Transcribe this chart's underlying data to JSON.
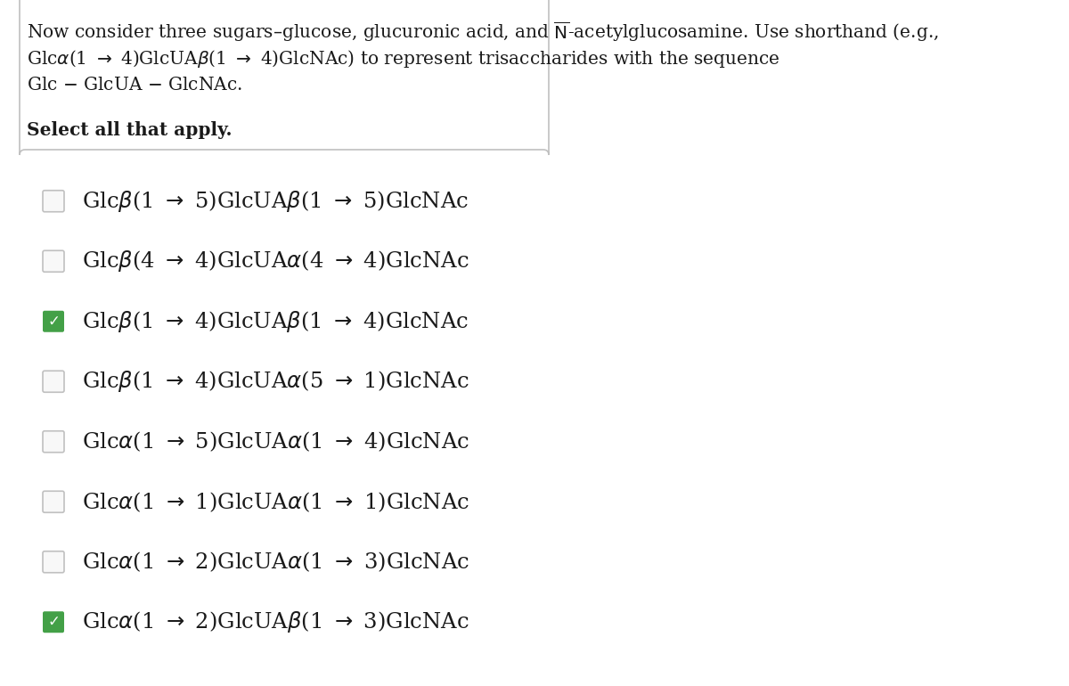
{
  "background_color": "#ffffff",
  "fig_width": 12.0,
  "fig_height": 7.7,
  "header_lines": [
    "Now consider three sugars–glucose, glucuronic acid, and $\\overline{\\mathrm{N}}$-acetylglucosamine. Use shorthand (e.g.,",
    "Glc$\\alpha$(1 $\\rightarrow$ 4)GlcUA$\\beta$(1 $\\rightarrow$ 4)GlcNAc) to represent trisaccharides with the sequence",
    "Glc $-$ GlcUA $-$ GlcNAc."
  ],
  "select_label": "Select all that apply.",
  "options": [
    {
      "text": "Glc$\\beta$(1 $\\rightarrow$ 5)GlcUA$\\beta$(1 $\\rightarrow$ 5)GlcNAc",
      "checked": false
    },
    {
      "text": "Glc$\\beta$(4 $\\rightarrow$ 4)GlcUA$\\alpha$(4 $\\rightarrow$ 4)GlcNAc",
      "checked": false
    },
    {
      "text": "Glc$\\beta$(1 $\\rightarrow$ 4)GlcUA$\\beta$(1 $\\rightarrow$ 4)GlcNAc",
      "checked": true
    },
    {
      "text": "Glc$\\beta$(1 $\\rightarrow$ 4)GlcUA$\\alpha$(5 $\\rightarrow$ 1)GlcNAc",
      "checked": false
    },
    {
      "text": "Glc$\\alpha$(1 $\\rightarrow$ 5)GlcUA$\\alpha$(1 $\\rightarrow$ 4)GlcNAc",
      "checked": false
    },
    {
      "text": "Glc$\\alpha$(1 $\\rightarrow$ 1)GlcUA$\\alpha$(1 $\\rightarrow$ 1)GlcNAc",
      "checked": false
    },
    {
      "text": "Glc$\\alpha$(1 $\\rightarrow$ 2)GlcUA$\\alpha$(1 $\\rightarrow$ 3)GlcNAc",
      "checked": false
    },
    {
      "text": "Glc$\\alpha$(1 $\\rightarrow$ 2)GlcUA$\\beta$(1 $\\rightarrow$ 3)GlcNAc",
      "checked": true
    }
  ],
  "header_fontsize": 14.5,
  "option_fontsize": 17.5,
  "select_fontsize": 14.5,
  "checkbox_color_checked": "#43a047",
  "text_color": "#1a1a1a",
  "box_edge_color": "#c0c0c0",
  "unchecked_edge_color": "#c0c0c0",
  "unchecked_face_color": "#f8f8f8"
}
